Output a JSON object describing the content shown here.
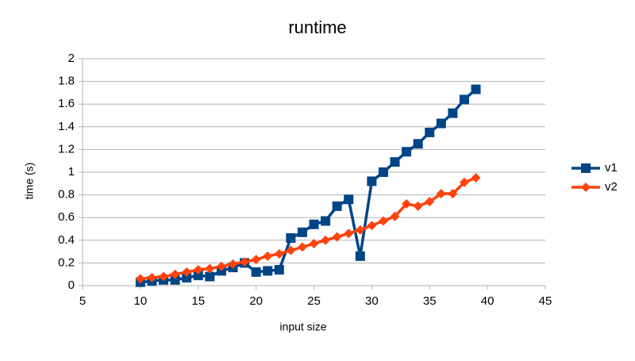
{
  "chart_data": {
    "type": "line",
    "title": "runtime",
    "x_label": "input size",
    "y_label": "time (s)",
    "x": [
      10,
      11,
      12,
      13,
      14,
      15,
      16,
      17,
      18,
      19,
      20,
      21,
      22,
      23,
      24,
      25,
      26,
      27,
      28,
      29,
      30,
      31,
      32,
      33,
      34,
      35,
      36,
      37,
      38,
      39
    ],
    "series": [
      {
        "name": "v1",
        "color": "#004586",
        "marker": "square",
        "values": [
          0.03,
          0.04,
          0.05,
          0.05,
          0.07,
          0.09,
          0.08,
          0.13,
          0.16,
          0.2,
          0.12,
          0.13,
          0.14,
          0.42,
          0.47,
          0.54,
          0.57,
          0.7,
          0.76,
          0.26,
          0.92,
          1.0,
          1.09,
          1.18,
          1.25,
          1.35,
          1.43,
          1.52,
          1.64,
          1.73
        ]
      },
      {
        "name": "v2",
        "color": "#ff420e",
        "marker": "diamond",
        "values": [
          0.06,
          0.07,
          0.08,
          0.1,
          0.12,
          0.14,
          0.15,
          0.17,
          0.19,
          0.21,
          0.23,
          0.26,
          0.28,
          0.31,
          0.34,
          0.37,
          0.4,
          0.43,
          0.46,
          0.49,
          0.53,
          0.57,
          0.61,
          0.72,
          0.7,
          0.74,
          0.81,
          0.81,
          0.91,
          0.95
        ]
      }
    ],
    "xlim": [
      5,
      45
    ],
    "xticks": [
      5,
      10,
      15,
      20,
      25,
      30,
      35,
      40,
      45
    ],
    "ylim": [
      0,
      2
    ],
    "yticks": [
      0,
      0.2,
      0.4,
      0.6,
      0.8,
      1,
      1.2,
      1.4,
      1.6,
      1.8,
      2
    ],
    "grid": true,
    "legend": "right"
  }
}
